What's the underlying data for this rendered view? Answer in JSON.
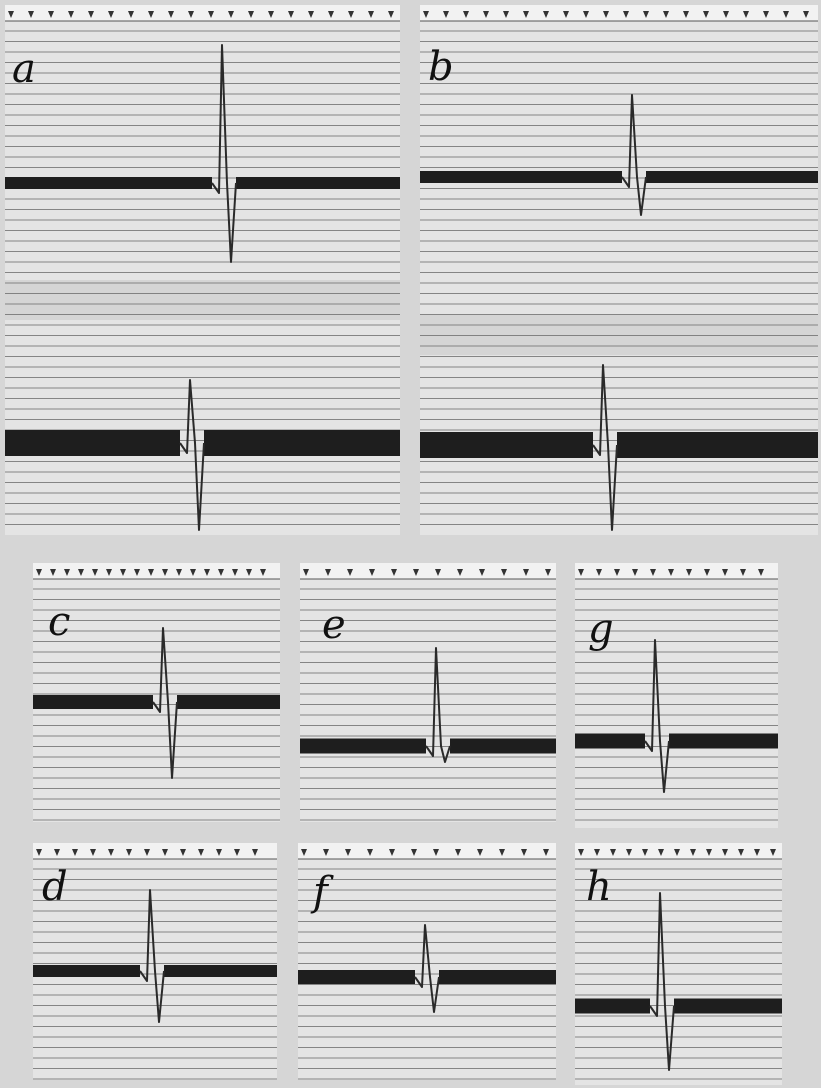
{
  "panels": [
    {
      "label": "a"
    },
    {
      "label": "b"
    },
    {
      "label": "c"
    },
    {
      "label": "d"
    },
    {
      "label": "e"
    },
    {
      "label": "f"
    },
    {
      "label": "g"
    },
    {
      "label": "h"
    }
  ]
}
